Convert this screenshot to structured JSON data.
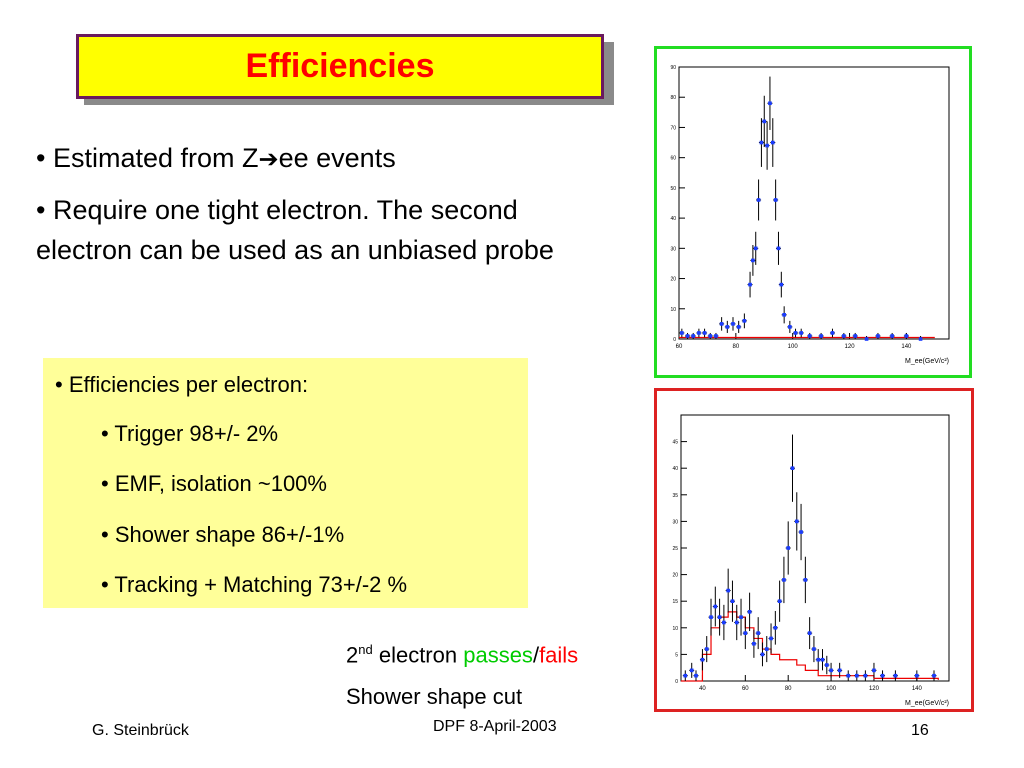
{
  "slide": {
    "title": "Efficiencies",
    "bullet1_a": "• Estimated from Z",
    "bullet1_arrow": "➔",
    "bullet1_b": "ee events",
    "bullet2": "• Require one tight electron. The second electron can be used as an unbiased probe",
    "eff_header": "• Efficiencies per electron:",
    "eff_items": [
      "• Trigger 98+/- 2%",
      "• EMF, isolation ~100%",
      "• Shower shape 86+/-1%",
      "• Tracking + Matching 73+/-2 %"
    ],
    "caption": {
      "num": "2",
      "sup": "nd",
      "electron": " electron ",
      "passes": "passes",
      "slash": "/",
      "fails": "fails",
      "line2": "Shower shape cut"
    },
    "footer": {
      "author": "G. Steinbrück",
      "conference": "DPF 8-April-2003",
      "page": "16"
    },
    "colors": {
      "title_bg": "#ffff00",
      "title_text": "#ff0000",
      "passes": "#00cc00",
      "fails": "#ff0000",
      "frame_top": "#22dd22",
      "frame_bottom": "#dd2222",
      "box_bg": "#ffff99"
    }
  },
  "chart_data": [
    {
      "type": "scatter",
      "xlabel": "M_ee(GeV/c²)",
      "ylabel": "",
      "xlim": [
        60,
        155
      ],
      "ylim": [
        0,
        90
      ],
      "xticks": [
        "60",
        "80",
        "100",
        "120",
        "140"
      ],
      "yticks": [
        "0",
        "10",
        "20",
        "30",
        "40",
        "50",
        "60",
        "70",
        "80",
        "90"
      ],
      "series": [
        {
          "points": [
            [
              61,
              2
            ],
            [
              63,
              1
            ],
            [
              65,
              1
            ],
            [
              67,
              2
            ],
            [
              69,
              2
            ],
            [
              71,
              1
            ],
            [
              73,
              1
            ],
            [
              75,
              5
            ],
            [
              77,
              4
            ],
            [
              79,
              5
            ],
            [
              81,
              4
            ],
            [
              83,
              6
            ],
            [
              85,
              18
            ],
            [
              86,
              26
            ],
            [
              87,
              30
            ],
            [
              88,
              46
            ],
            [
              89,
              65
            ],
            [
              90,
              72
            ],
            [
              91,
              64
            ],
            [
              92,
              78
            ],
            [
              93,
              65
            ],
            [
              94,
              46
            ],
            [
              95,
              30
            ],
            [
              96,
              18
            ],
            [
              97,
              8
            ],
            [
              99,
              4
            ],
            [
              101,
              2
            ],
            [
              103,
              2
            ],
            [
              106,
              1
            ],
            [
              110,
              1
            ],
            [
              114,
              2
            ],
            [
              118,
              1
            ],
            [
              122,
              1
            ],
            [
              126,
              0
            ],
            [
              130,
              1
            ],
            [
              135,
              1
            ],
            [
              140,
              1
            ],
            [
              145,
              0
            ]
          ]
        },
        {
          "points": [
            [
              60,
              0.5
            ],
            [
              80,
              0.5
            ],
            [
              100,
              0.5
            ],
            [
              120,
              0.5
            ],
            [
              150,
              0.5
            ]
          ]
        }
      ]
    },
    {
      "type": "scatter",
      "xlabel": "M_ee(GeV/c²)",
      "ylabel": "",
      "xlim": [
        30,
        155
      ],
      "ylim": [
        0,
        50
      ],
      "xticks": [
        "40",
        "60",
        "80",
        "100",
        "120",
        "140"
      ],
      "yticks": [
        "0",
        "5",
        "10",
        "15",
        "20",
        "25",
        "30",
        "35",
        "40",
        "45"
      ],
      "series": [
        {
          "points": [
            [
              32,
              1
            ],
            [
              35,
              2
            ],
            [
              37,
              1
            ],
            [
              40,
              4
            ],
            [
              42,
              6
            ],
            [
              44,
              12
            ],
            [
              46,
              14
            ],
            [
              48,
              12
            ],
            [
              50,
              11
            ],
            [
              52,
              17
            ],
            [
              54,
              15
            ],
            [
              56,
              11
            ],
            [
              58,
              12
            ],
            [
              60,
              9
            ],
            [
              62,
              13
            ],
            [
              64,
              7
            ],
            [
              66,
              9
            ],
            [
              68,
              5
            ],
            [
              70,
              6
            ],
            [
              72,
              8
            ],
            [
              74,
              10
            ],
            [
              76,
              15
            ],
            [
              78,
              19
            ],
            [
              80,
              25
            ],
            [
              82,
              40
            ],
            [
              84,
              30
            ],
            [
              86,
              28
            ],
            [
              88,
              19
            ],
            [
              90,
              9
            ],
            [
              92,
              6
            ],
            [
              94,
              4
            ],
            [
              96,
              4
            ],
            [
              98,
              3
            ],
            [
              100,
              2
            ],
            [
              104,
              2
            ],
            [
              108,
              1
            ],
            [
              112,
              1
            ],
            [
              116,
              1
            ],
            [
              120,
              2
            ],
            [
              124,
              1
            ],
            [
              130,
              1
            ],
            [
              140,
              1
            ],
            [
              148,
              1
            ]
          ]
        },
        {
          "points": [
            [
              30,
              0
            ],
            [
              36,
              0
            ],
            [
              40,
              5
            ],
            [
              44,
              10
            ],
            [
              48,
              12
            ],
            [
              52,
              13
            ],
            [
              56,
              12
            ],
            [
              60,
              10
            ],
            [
              64,
              8
            ],
            [
              68,
              6
            ],
            [
              72,
              5
            ],
            [
              76,
              4
            ],
            [
              80,
              4
            ],
            [
              84,
              3
            ],
            [
              88,
              2
            ],
            [
              94,
              1
            ],
            [
              104,
              1
            ],
            [
              120,
              0.5
            ],
            [
              150,
              0.2
            ]
          ]
        }
      ]
    }
  ]
}
